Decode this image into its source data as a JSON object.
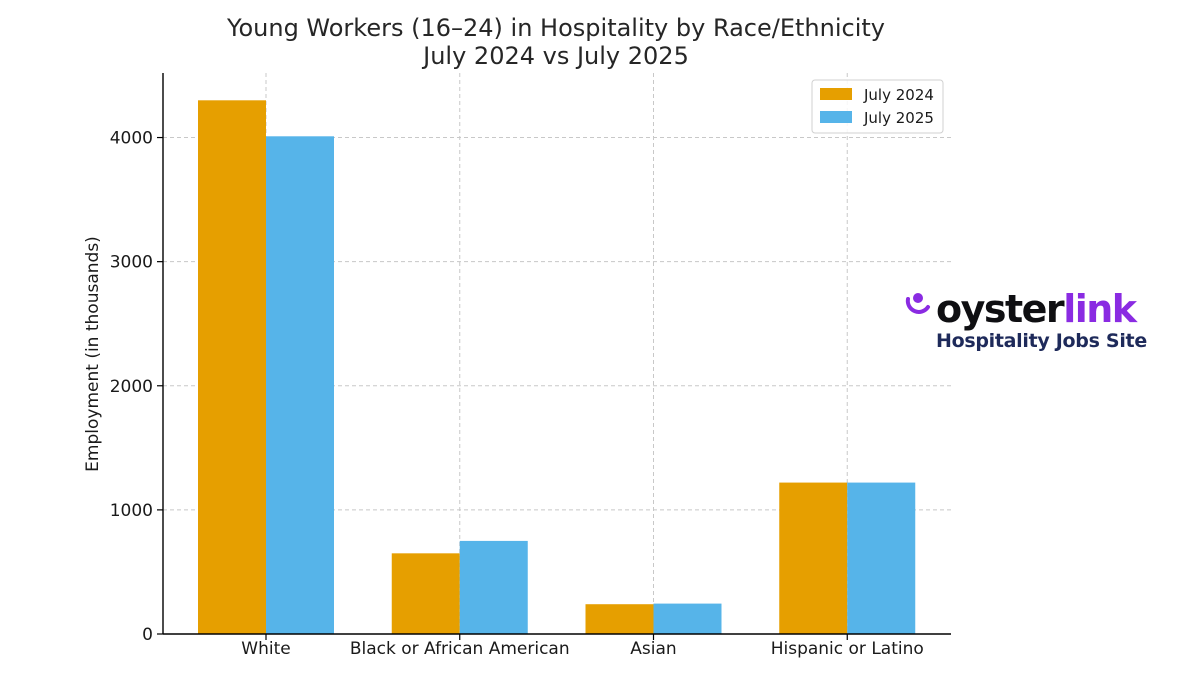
{
  "chart_data": {
    "type": "bar",
    "title": "Young Workers (16–24) in Hospitality by Race/Ethnicity",
    "subtitle": "July 2024 vs July 2025",
    "xlabel": "",
    "ylabel": "Employment (in thousands)",
    "categories": [
      "White",
      "Black or African American",
      "Asian",
      "Hispanic or Latino"
    ],
    "series": [
      {
        "name": "July 2024",
        "color": "#e69f00",
        "values": [
          4300,
          650,
          240,
          1220
        ]
      },
      {
        "name": "July 2025",
        "color": "#56b4e9",
        "values": [
          4010,
          750,
          245,
          1220
        ]
      }
    ],
    "ylim": [
      0,
      4520
    ],
    "yticks": [
      0,
      1000,
      2000,
      3000,
      4000
    ],
    "grid": true,
    "legend": "top-right"
  },
  "brand": {
    "name_part1": "oyster",
    "name_part2": "link",
    "tagline": "Hospitality Jobs Site",
    "icon": "oyster-pearl-icon",
    "accent_color": "#8a2be2",
    "tagline_color": "#1e2a5a"
  }
}
